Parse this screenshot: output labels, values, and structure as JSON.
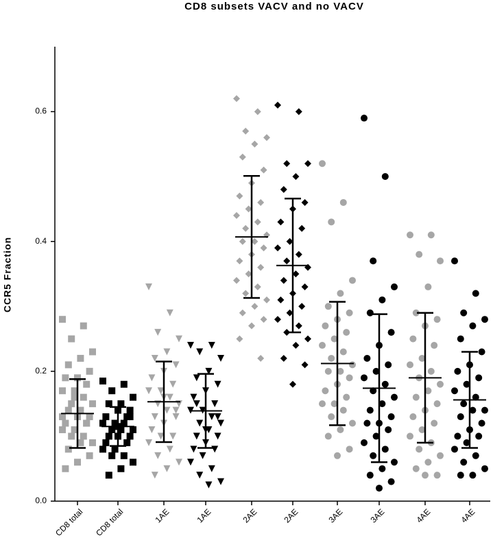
{
  "chart_data": {
    "type": "dot_plot",
    "title": "CD8 subsets VACV and no VACV",
    "y_label": "CCR5 Fraction",
    "ylim": [
      0,
      0.7
    ],
    "yticks": [
      {
        "value": 0,
        "label": "0.0"
      },
      0.2,
      0.4,
      0.6
    ],
    "groups": [
      {
        "label": "CD8 total",
        "color": "#a6a6a6",
        "marker": "square",
        "mean": 0.135,
        "sd": 0.053,
        "values": [
          0.28,
          0.27,
          0.25,
          0.23,
          0.22,
          0.21,
          0.2,
          0.19,
          0.19,
          0.18,
          0.17,
          0.17,
          0.16,
          0.15,
          0.15,
          0.14,
          0.14,
          0.13,
          0.13,
          0.12,
          0.12,
          0.11,
          0.11,
          0.1,
          0.1,
          0.09,
          0.09,
          0.08,
          0.07,
          0.06,
          0.05,
          0.12,
          0.16,
          0.13
        ]
      },
      {
        "label": "CD8 total",
        "color": "#000000",
        "marker": "square",
        "mean": 0.115,
        "sd": 0.03,
        "values": [
          0.185,
          0.18,
          0.17,
          0.16,
          0.15,
          0.15,
          0.14,
          0.14,
          0.13,
          0.13,
          0.12,
          0.12,
          0.12,
          0.11,
          0.11,
          0.11,
          0.1,
          0.1,
          0.1,
          0.09,
          0.09,
          0.08,
          0.08,
          0.07,
          0.07,
          0.06,
          0.05,
          0.04,
          0.13,
          0.115
        ]
      },
      {
        "label": "1AE",
        "color": "#a6a6a6",
        "marker": "triangle",
        "mean": 0.153,
        "sd": 0.062,
        "values": [
          0.33,
          0.29,
          0.26,
          0.25,
          0.23,
          0.22,
          0.21,
          0.2,
          0.19,
          0.18,
          0.17,
          0.17,
          0.16,
          0.15,
          0.15,
          0.14,
          0.13,
          0.13,
          0.12,
          0.11,
          0.1,
          0.1,
          0.09,
          0.08,
          0.07,
          0.06,
          0.05,
          0.04,
          0.14,
          0.16
        ]
      },
      {
        "label": "1AE",
        "color": "#000000",
        "marker": "triangle",
        "mean": 0.139,
        "sd": 0.057,
        "values": [
          0.24,
          0.24,
          0.23,
          0.22,
          0.2,
          0.19,
          0.18,
          0.17,
          0.16,
          0.15,
          0.14,
          0.14,
          0.13,
          0.12,
          0.12,
          0.11,
          0.1,
          0.1,
          0.09,
          0.08,
          0.08,
          0.07,
          0.06,
          0.05,
          0.04,
          0.03,
          0.025,
          0.15,
          0.13,
          0.11
        ]
      },
      {
        "label": "2AE",
        "color": "#a6a6a6",
        "marker": "diamond",
        "mean": 0.407,
        "sd": 0.094,
        "values": [
          0.62,
          0.6,
          0.57,
          0.56,
          0.55,
          0.53,
          0.51,
          0.49,
          0.47,
          0.46,
          0.45,
          0.44,
          0.43,
          0.42,
          0.41,
          0.4,
          0.4,
          0.39,
          0.38,
          0.37,
          0.36,
          0.35,
          0.34,
          0.33,
          0.32,
          0.31,
          0.3,
          0.29,
          0.28,
          0.27,
          0.25,
          0.22
        ]
      },
      {
        "label": "2AE",
        "color": "#000000",
        "marker": "diamond",
        "mean": 0.363,
        "sd": 0.103,
        "values": [
          0.61,
          0.6,
          0.52,
          0.52,
          0.5,
          0.48,
          0.46,
          0.45,
          0.43,
          0.42,
          0.4,
          0.39,
          0.38,
          0.37,
          0.36,
          0.35,
          0.34,
          0.33,
          0.32,
          0.31,
          0.3,
          0.29,
          0.28,
          0.27,
          0.26,
          0.25,
          0.24,
          0.22,
          0.21,
          0.18
        ]
      },
      {
        "label": "3AE",
        "color": "#a6a6a6",
        "marker": "circle",
        "mean": 0.212,
        "sd": 0.095,
        "values": [
          0.52,
          0.46,
          0.43,
          0.34,
          0.32,
          0.3,
          0.29,
          0.28,
          0.27,
          0.26,
          0.25,
          0.24,
          0.23,
          0.22,
          0.21,
          0.2,
          0.2,
          0.19,
          0.18,
          0.17,
          0.16,
          0.15,
          0.15,
          0.14,
          0.13,
          0.12,
          0.11,
          0.1,
          0.08,
          0.07
        ]
      },
      {
        "label": "3AE",
        "color": "#000000",
        "marker": "circle",
        "mean": 0.174,
        "sd": 0.114,
        "values": [
          0.59,
          0.5,
          0.37,
          0.33,
          0.31,
          0.29,
          0.26,
          0.24,
          0.22,
          0.21,
          0.2,
          0.19,
          0.18,
          0.17,
          0.16,
          0.15,
          0.14,
          0.13,
          0.12,
          0.12,
          0.11,
          0.1,
          0.09,
          0.08,
          0.07,
          0.06,
          0.05,
          0.04,
          0.03,
          0.02
        ]
      },
      {
        "label": "4AE",
        "color": "#a6a6a6",
        "marker": "circle",
        "mean": 0.19,
        "sd": 0.1,
        "values": [
          0.41,
          0.41,
          0.38,
          0.37,
          0.33,
          0.29,
          0.28,
          0.27,
          0.25,
          0.24,
          0.22,
          0.21,
          0.2,
          0.19,
          0.18,
          0.17,
          0.16,
          0.15,
          0.14,
          0.13,
          0.12,
          0.11,
          0.1,
          0.09,
          0.08,
          0.07,
          0.06,
          0.05,
          0.04,
          0.04
        ]
      },
      {
        "label": "4AE",
        "color": "#000000",
        "marker": "circle",
        "mean": 0.156,
        "sd": 0.074,
        "values": [
          0.37,
          0.32,
          0.29,
          0.28,
          0.27,
          0.25,
          0.23,
          0.21,
          0.2,
          0.19,
          0.18,
          0.17,
          0.16,
          0.15,
          0.14,
          0.14,
          0.13,
          0.12,
          0.11,
          0.1,
          0.1,
          0.09,
          0.08,
          0.07,
          0.06,
          0.05,
          0.04,
          0.04
        ]
      }
    ]
  }
}
